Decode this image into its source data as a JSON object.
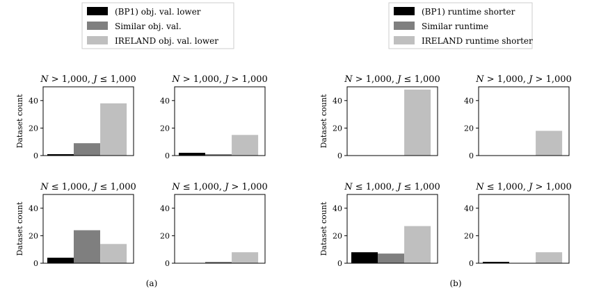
{
  "palette": {
    "lower_baseline": "#000000",
    "similar": "#7f7f7f",
    "ireland": "#bfbfbf"
  },
  "legends": {
    "a": {
      "entries": [
        {
          "label": "(BP1) obj. val. lower",
          "color": "#000000"
        },
        {
          "label": "Similar obj. val.",
          "color": "#7f7f7f"
        },
        {
          "label": "IRELAND obj. val. lower",
          "color": "#bfbfbf"
        }
      ]
    },
    "b": {
      "entries": [
        {
          "label": "(BP1) runtime shorter",
          "color": "#000000"
        },
        {
          "label": "Similar runtime",
          "color": "#7f7f7f"
        },
        {
          "label": "IRELAND runtime shorter",
          "color": "#bfbfbf"
        }
      ]
    }
  },
  "captions": {
    "a": "(a)",
    "b": "(b)"
  },
  "chart_data": [
    {
      "id": "a-tl",
      "type": "bar",
      "title": "N > 1,000, J ≤ 1,000",
      "ylabel": "Dataset count",
      "ylim": [
        0,
        50
      ],
      "yticks": [
        0,
        20,
        40
      ],
      "values": [
        1,
        9,
        38
      ]
    },
    {
      "id": "a-tr",
      "type": "bar",
      "title": "N > 1,000, J > 1,000",
      "ylabel": "",
      "ylim": [
        0,
        50
      ],
      "yticks": [
        0,
        20,
        40
      ],
      "values": [
        2,
        1,
        15
      ]
    },
    {
      "id": "a-bl",
      "type": "bar",
      "title": "N ≤ 1,000, J ≤ 1,000",
      "ylabel": "Dataset count",
      "ylim": [
        0,
        50
      ],
      "yticks": [
        0,
        20,
        40
      ],
      "values": [
        4,
        24,
        14
      ]
    },
    {
      "id": "a-br",
      "type": "bar",
      "title": "N ≤ 1,000, J > 1,000",
      "ylabel": "",
      "ylim": [
        0,
        50
      ],
      "yticks": [
        0,
        20,
        40
      ],
      "values": [
        0,
        1,
        8
      ]
    },
    {
      "id": "b-tl",
      "type": "bar",
      "title": "N > 1,000, J ≤ 1,000",
      "ylabel": "Dataset count",
      "ylim": [
        0,
        50
      ],
      "yticks": [
        0,
        20,
        40
      ],
      "values": [
        0,
        0,
        48
      ]
    },
    {
      "id": "b-tr",
      "type": "bar",
      "title": "N > 1,000, J > 1,000",
      "ylabel": "",
      "ylim": [
        0,
        50
      ],
      "yticks": [
        0,
        20,
        40
      ],
      "values": [
        0,
        0,
        18
      ]
    },
    {
      "id": "b-bl",
      "type": "bar",
      "title": "N ≤ 1,000, J ≤ 1,000",
      "ylabel": "Dataset count",
      "ylim": [
        0,
        50
      ],
      "yticks": [
        0,
        20,
        40
      ],
      "values": [
        8,
        7,
        27
      ]
    },
    {
      "id": "b-br",
      "type": "bar",
      "title": "N ≤ 1,000, J > 1,000",
      "ylabel": "",
      "ylim": [
        0,
        50
      ],
      "yticks": [
        0,
        20,
        40
      ],
      "values": [
        1,
        0,
        8
      ]
    }
  ]
}
